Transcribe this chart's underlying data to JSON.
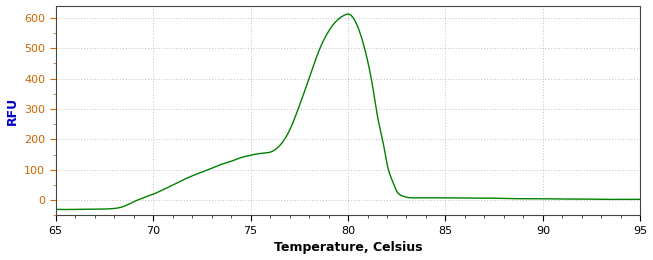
{
  "title": "",
  "xlabel": "Temperature, Celsius",
  "ylabel": "RFU",
  "xlim": [
    65,
    95
  ],
  "ylim": [
    -50,
    640
  ],
  "yticks": [
    0,
    100,
    200,
    300,
    400,
    500,
    600
  ],
  "xticks": [
    65,
    70,
    75,
    80,
    85,
    90,
    95
  ],
  "line_color": "#008000",
  "background_color": "#ffffff",
  "grid_color": "#808080",
  "xlabel_color": "#000000",
  "ylabel_color": "#0000cc",
  "tick_label_color_y": "#cc6600",
  "tick_label_color_x": "#000000",
  "keypoints": [
    [
      65,
      -30
    ],
    [
      66,
      -30
    ],
    [
      67,
      -29
    ],
    [
      68,
      -27
    ],
    [
      68.5,
      -20
    ],
    [
      69,
      -5
    ],
    [
      69.5,
      8
    ],
    [
      70,
      20
    ],
    [
      71,
      50
    ],
    [
      72,
      80
    ],
    [
      73,
      105
    ],
    [
      73.5,
      118
    ],
    [
      74,
      128
    ],
    [
      74.5,
      140
    ],
    [
      75,
      148
    ],
    [
      75.3,
      152
    ],
    [
      75.7,
      155
    ],
    [
      76,
      158
    ],
    [
      76.5,
      180
    ],
    [
      77,
      230
    ],
    [
      77.5,
      310
    ],
    [
      78,
      400
    ],
    [
      78.5,
      490
    ],
    [
      79,
      555
    ],
    [
      79.5,
      595
    ],
    [
      79.8,
      608
    ],
    [
      80.0,
      612
    ],
    [
      80.2,
      605
    ],
    [
      80.5,
      570
    ],
    [
      81.0,
      460
    ],
    [
      81.3,
      360
    ],
    [
      81.5,
      280
    ],
    [
      81.8,
      190
    ],
    [
      82.0,
      120
    ],
    [
      82.3,
      60
    ],
    [
      82.5,
      30
    ],
    [
      82.8,
      14
    ],
    [
      83.0,
      10
    ],
    [
      83.5,
      8
    ],
    [
      84,
      8
    ],
    [
      85,
      8
    ],
    [
      86,
      7
    ],
    [
      87,
      7
    ],
    [
      88,
      6
    ],
    [
      89,
      5
    ],
    [
      90,
      5
    ],
    [
      91,
      4
    ],
    [
      92,
      4
    ],
    [
      93,
      3
    ],
    [
      94,
      3
    ],
    [
      95,
      3
    ]
  ]
}
